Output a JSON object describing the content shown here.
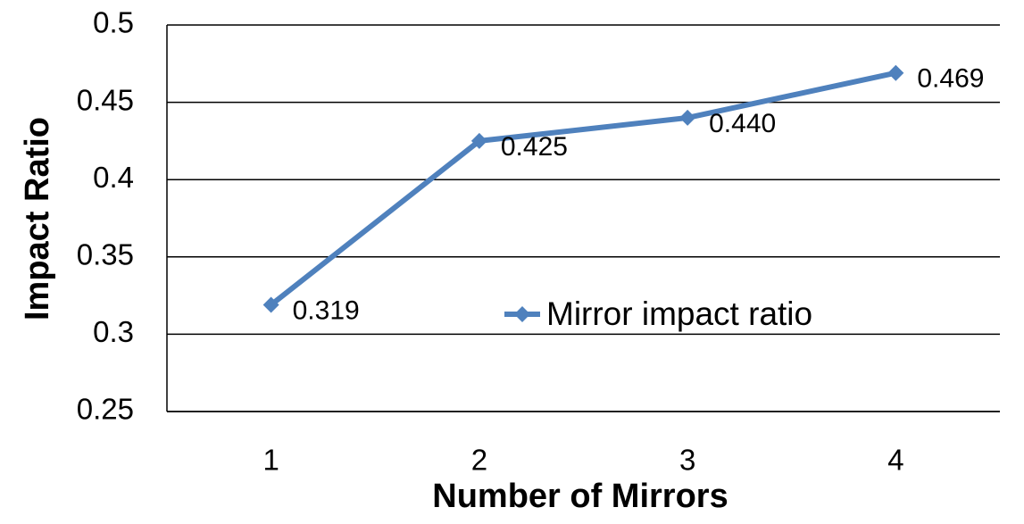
{
  "chart_data": {
    "type": "line",
    "title_x": "Number of Mirrors",
    "title_y": "Impact Ratio",
    "categories": [
      "1",
      "2",
      "3",
      "4"
    ],
    "series": [
      {
        "name": "Mirror impact ratio",
        "color": "#4f81bd",
        "values": [
          0.319,
          0.425,
          0.44,
          0.469
        ],
        "value_labels": [
          "0.319",
          "0.425",
          "0.440",
          "0.469"
        ]
      }
    ],
    "ylim": [
      0.25,
      0.5
    ],
    "yticks": [
      0.25,
      0.3,
      0.35,
      0.4,
      0.45,
      0.5
    ],
    "grid": true,
    "legend": "center"
  }
}
